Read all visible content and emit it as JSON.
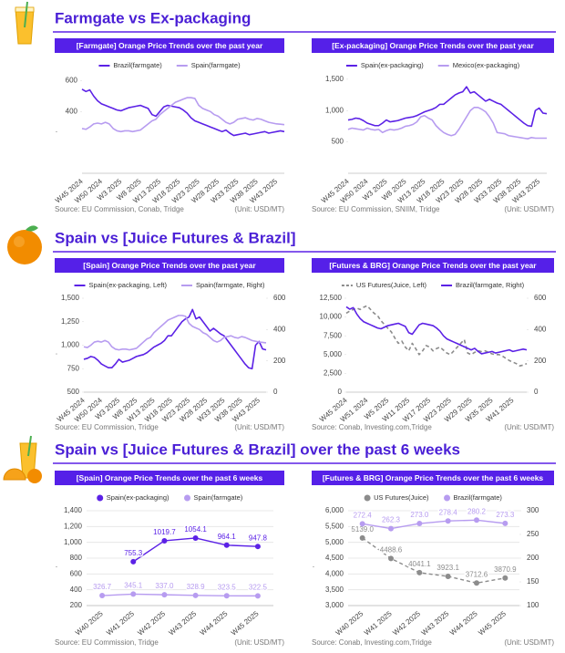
{
  "sections": [
    {
      "title": "Farmgate vs Ex-packaging"
    },
    {
      "title": "Spain vs [Juice Futures & Brazil]"
    },
    {
      "title": "Spain vs [Juice Futures & Brazil] over the past 6 weeks"
    }
  ],
  "chart_data": [
    {
      "type": "line",
      "title": "[Farmgate] Orange Price Trends over the past year",
      "y_label": ".",
      "source": "Source: EU Commission, Conab, Tridge",
      "unit": "(Unit: USD/MT)",
      "grid": false,
      "categories": [
        "W45 2024",
        null,
        null,
        null,
        null,
        "W50 2024",
        null,
        null,
        null,
        null,
        "W3 2025",
        null,
        null,
        null,
        null,
        "W8 2025",
        null,
        null,
        null,
        null,
        "W13 2025",
        null,
        null,
        null,
        null,
        "W18 2025",
        null,
        null,
        null,
        null,
        "W23 2025",
        null,
        null,
        null,
        null,
        "W28 2025",
        null,
        null,
        null,
        null,
        "W33 2025",
        null,
        null,
        null,
        null,
        "W38 2025",
        null,
        null,
        null,
        null,
        "W43 2025",
        null,
        null
      ],
      "ylim": [
        0,
        650
      ],
      "yticks": [
        400,
        600
      ],
      "series": [
        {
          "name": "Brazil(farmgate)",
          "color": "#5b21e6",
          "values": [
            545,
            530,
            540,
            500,
            470,
            450,
            440,
            430,
            420,
            410,
            405,
            415,
            425,
            430,
            435,
            440,
            430,
            420,
            380,
            370,
            400,
            430,
            440,
            435,
            430,
            425,
            410,
            390,
            360,
            340,
            330,
            320,
            310,
            300,
            290,
            280,
            270,
            280,
            260,
            245,
            250,
            255,
            260,
            250,
            255,
            260,
            265,
            270,
            260,
            265,
            270,
            275,
            270
          ]
        },
        {
          "name": "Spain(farmgate)",
          "color": "#b79cf0",
          "values": [
            290,
            285,
            300,
            320,
            325,
            320,
            330,
            320,
            290,
            275,
            270,
            275,
            275,
            270,
            275,
            280,
            300,
            320,
            340,
            350,
            380,
            400,
            420,
            440,
            460,
            470,
            480,
            490,
            490,
            485,
            440,
            420,
            410,
            400,
            380,
            370,
            350,
            330,
            320,
            330,
            350,
            355,
            360,
            350,
            345,
            355,
            350,
            340,
            330,
            325,
            320,
            318,
            315
          ]
        }
      ]
    },
    {
      "type": "line",
      "title": "[Ex-packaging] Orange Price Trends over the past year",
      "source": "Source: EU Commission, SNIIM, Tridge",
      "unit": "(Unit: USD/MT)",
      "grid": false,
      "categories": [
        "W45 2024",
        null,
        null,
        null,
        null,
        "W50 2024",
        null,
        null,
        null,
        null,
        "W3 2025",
        null,
        null,
        null,
        null,
        "W8 2025",
        null,
        null,
        null,
        null,
        "W13 2025",
        null,
        null,
        null,
        null,
        "W18 2025",
        null,
        null,
        null,
        null,
        "W23 2025",
        null,
        null,
        null,
        null,
        "W28 2025",
        null,
        null,
        null,
        null,
        "W33 2025",
        null,
        null,
        null,
        null,
        "W38 2025",
        null,
        null,
        null,
        null,
        "W43 2025",
        null,
        null
      ],
      "ylim": [
        0,
        1600
      ],
      "yticks": [
        {
          "value": 500,
          "label": "500"
        },
        {
          "value": 1000,
          "label": "1,000"
        },
        {
          "value": 1500,
          "label": "1,500"
        }
      ],
      "series": [
        {
          "name": "Spain(ex-packaging)",
          "color": "#5b21e6",
          "values": [
            850,
            860,
            880,
            870,
            840,
            800,
            780,
            760,
            760,
            800,
            850,
            820,
            830,
            840,
            860,
            880,
            890,
            900,
            920,
            950,
            980,
            1000,
            1020,
            1050,
            1100,
            1100,
            1150,
            1200,
            1250,
            1280,
            1300,
            1380,
            1280,
            1300,
            1250,
            1200,
            1150,
            1180,
            1150,
            1120,
            1100,
            1050,
            1000,
            950,
            900,
            850,
            800,
            760,
            750,
            1000,
            1040,
            960,
            950
          ]
        },
        {
          "name": "Mexico(ex-packaging)",
          "color": "#b79cf0",
          "values": [
            700,
            720,
            710,
            700,
            690,
            720,
            700,
            690,
            700,
            650,
            680,
            700,
            690,
            700,
            720,
            750,
            760,
            780,
            820,
            900,
            920,
            880,
            850,
            760,
            700,
            650,
            620,
            600,
            620,
            700,
            800,
            900,
            1000,
            1050,
            1050,
            1020,
            980,
            900,
            800,
            650,
            640,
            630,
            600,
            590,
            580,
            570,
            560,
            550,
            570,
            560,
            560,
            560,
            560
          ]
        }
      ]
    },
    {
      "type": "line",
      "title": "[Spain] Orange Price Trends over the past year",
      "y_label": ".",
      "source": "Source: EU Commission, Tridge",
      "unit": "(Unit: USD/MT)",
      "grid": false,
      "categories": [
        "W45 2024",
        null,
        null,
        null,
        null,
        "W50 2024",
        null,
        null,
        null,
        null,
        "W3 2025",
        null,
        null,
        null,
        null,
        "W8 2025",
        null,
        null,
        null,
        null,
        "W13 2025",
        null,
        null,
        null,
        null,
        "W18 2025",
        null,
        null,
        null,
        null,
        "W23 2025",
        null,
        null,
        null,
        null,
        "W28 2025",
        null,
        null,
        null,
        null,
        "W33 2025",
        null,
        null,
        null,
        null,
        "W38 2025",
        null,
        null,
        null,
        null,
        "W43 2025",
        null,
        null
      ],
      "ylim": [
        500,
        1500
      ],
      "yticks": [
        {
          "value": 500,
          "label": "500"
        },
        {
          "value": 750,
          "label": "750"
        },
        {
          "value": 1000,
          "label": "1,000"
        },
        {
          "value": 1250,
          "label": "1,250"
        },
        {
          "value": 1500,
          "label": "1,500"
        }
      ],
      "y2lim": [
        0,
        600
      ],
      "y2ticks": [
        0,
        200,
        400,
        600
      ],
      "series": [
        {
          "name": "Spain(ex-packaging, Left)",
          "color": "#5b21e6",
          "values": [
            850,
            860,
            880,
            870,
            840,
            800,
            780,
            760,
            760,
            800,
            850,
            820,
            830,
            840,
            860,
            880,
            890,
            900,
            920,
            950,
            980,
            1000,
            1020,
            1050,
            1100,
            1100,
            1150,
            1200,
            1250,
            1280,
            1300,
            1380,
            1280,
            1300,
            1250,
            1200,
            1150,
            1180,
            1150,
            1120,
            1100,
            1050,
            1000,
            950,
            900,
            850,
            800,
            760,
            750,
            1000,
            1040,
            960,
            950
          ]
        },
        {
          "name": "Spain(farmgate, Right)",
          "color": "#b79cf0",
          "axis": "y2",
          "values": [
            290,
            285,
            300,
            320,
            325,
            320,
            330,
            320,
            290,
            275,
            270,
            275,
            275,
            270,
            275,
            280,
            300,
            320,
            340,
            350,
            380,
            400,
            420,
            440,
            460,
            470,
            480,
            490,
            490,
            485,
            440,
            420,
            410,
            400,
            380,
            370,
            350,
            330,
            320,
            330,
            350,
            355,
            360,
            350,
            345,
            355,
            350,
            340,
            330,
            325,
            320,
            318,
            315
          ]
        }
      ]
    },
    {
      "type": "line",
      "title": "[Futures & BRG] Orange Price Trends over the past year",
      "source": "Source: Conab, Investing.com,Tridge",
      "unit": "(Unit: USD/MT)",
      "grid": false,
      "categories": [
        "W45 2024",
        null,
        null,
        null,
        null,
        null,
        "W51 2024",
        null,
        null,
        null,
        null,
        null,
        "W5 2025",
        null,
        null,
        null,
        null,
        null,
        "W11 2025",
        null,
        null,
        null,
        null,
        null,
        "W17 2025",
        null,
        null,
        null,
        null,
        null,
        "W23 2025",
        null,
        null,
        null,
        null,
        null,
        "W29 2025",
        null,
        null,
        null,
        null,
        null,
        "W35 2025",
        null,
        null,
        null,
        null,
        null,
        "W41 2025",
        null,
        null,
        null,
        null
      ],
      "ylim": [
        0,
        12500
      ],
      "yticks": [
        0,
        {
          "value": 2500,
          "label": "2,500"
        },
        {
          "value": 5000,
          "label": "5,000"
        },
        {
          "value": 7500,
          "label": "7,500"
        },
        {
          "value": 10000,
          "label": "10,000"
        },
        {
          "value": 12500,
          "label": "12,500"
        }
      ],
      "y2lim": [
        0,
        600
      ],
      "y2ticks": [
        0,
        200,
        400,
        600
      ],
      "series": [
        {
          "name": "US Futures(Juice, Left)",
          "color": "#8c8c8c",
          "dash": true,
          "values": [
            10500,
            10800,
            11000,
            11200,
            11000,
            11300,
            11500,
            11000,
            10500,
            10200,
            9500,
            9000,
            8500,
            8000,
            7200,
            6500,
            6800,
            6000,
            5500,
            6500,
            5800,
            5000,
            5500,
            6200,
            6000,
            5500,
            5800,
            6000,
            5600,
            5200,
            5000,
            5500,
            6000,
            6500,
            7000,
            5200,
            5000,
            5300,
            5500,
            5400,
            5500,
            5300,
            5100,
            5000,
            5000,
            4800,
            4500,
            4200,
            4000,
            3800,
            3500,
            3600,
            3800
          ]
        },
        {
          "name": "Brazil(farmgate, Right)",
          "color": "#5b21e6",
          "axis": "y2",
          "values": [
            545,
            530,
            540,
            500,
            470,
            450,
            440,
            430,
            420,
            410,
            405,
            415,
            425,
            430,
            435,
            440,
            430,
            420,
            380,
            370,
            400,
            430,
            440,
            435,
            430,
            425,
            410,
            390,
            360,
            340,
            330,
            320,
            310,
            300,
            290,
            280,
            270,
            280,
            260,
            245,
            250,
            255,
            260,
            250,
            255,
            260,
            265,
            270,
            260,
            265,
            270,
            275,
            270
          ]
        }
      ]
    },
    {
      "type": "line",
      "title": "[Spain] Orange Price Trends over the past 6 weeks",
      "y_label": ".",
      "source": "Source: EU Commission, Tridge",
      "unit": "(Unit: USD/MT)",
      "grid": true,
      "markers": true,
      "categories": [
        "W40 2025",
        "W41 2025",
        "W42 2025",
        "W43 2025",
        "W44 2025",
        "W45 2025"
      ],
      "ylim": [
        200,
        1400
      ],
      "yticks": [
        200,
        400,
        600,
        800,
        {
          "value": 1000,
          "label": "1,000"
        },
        {
          "value": 1200,
          "label": "1,200"
        },
        {
          "value": 1400,
          "label": "1,400"
        }
      ],
      "series": [
        {
          "name": "Spain(ex-packaging)",
          "color": "#5b21e6",
          "values": [
            null,
            755.3,
            1019.7,
            1054.1,
            964.1,
            947.8
          ]
        },
        {
          "name": "Spain(farmgate)",
          "color": "#b79cf0",
          "values": [
            326.7,
            345.1,
            337.0,
            328.9,
            323.5,
            322.5
          ],
          "value_labels": [
            "326.7",
            "345.1",
            "337.0",
            "328.9",
            "323.5",
            "322.5"
          ]
        }
      ]
    },
    {
      "type": "line",
      "title": "[Futures & BRG] Orange Price Trends over the past 6 weeks",
      "y_label": ".",
      "source": "Source: Conab, Investing.com,Tridge",
      "unit": "(Unit: USD/MT)",
      "grid": true,
      "markers": true,
      "categories": [
        "W40 2025",
        "W41 2025",
        "W42 2025",
        "W43 2025",
        "W44 2025",
        "W45 2025"
      ],
      "ylim": [
        3000,
        6000
      ],
      "yticks": [
        {
          "value": 3000,
          "label": "3,000"
        },
        {
          "value": 3500,
          "label": "3,500"
        },
        {
          "value": 4000,
          "label": "4,000"
        },
        {
          "value": 4500,
          "label": "4,500"
        },
        {
          "value": 5000,
          "label": "5,000"
        },
        {
          "value": 5500,
          "label": "5,500"
        },
        {
          "value": 6000,
          "label": "6,000"
        }
      ],
      "y2lim": [
        100,
        300
      ],
      "y2ticks": [
        100,
        150,
        200,
        250,
        300
      ],
      "series": [
        {
          "name": "US Futures(Juice)",
          "color": "#8c8c8c",
          "dash": true,
          "values": [
            5139.0,
            4488.6,
            4041.1,
            3923.1,
            3712.6,
            3870.9
          ],
          "value_labels": [
            "5139.0",
            "4488.6",
            "4041.1",
            "3923.1",
            "3712.6",
            "3870.9"
          ]
        },
        {
          "name": "Brazil(farmgate)",
          "color": "#b79cf0",
          "axis": "y2",
          "values": [
            272.4,
            262.3,
            273.0,
            278.4,
            280.2,
            273.3
          ],
          "value_labels": [
            "272.4",
            "262.3",
            "273.0",
            "278.4",
            "280.2",
            "273.3"
          ]
        }
      ]
    }
  ]
}
